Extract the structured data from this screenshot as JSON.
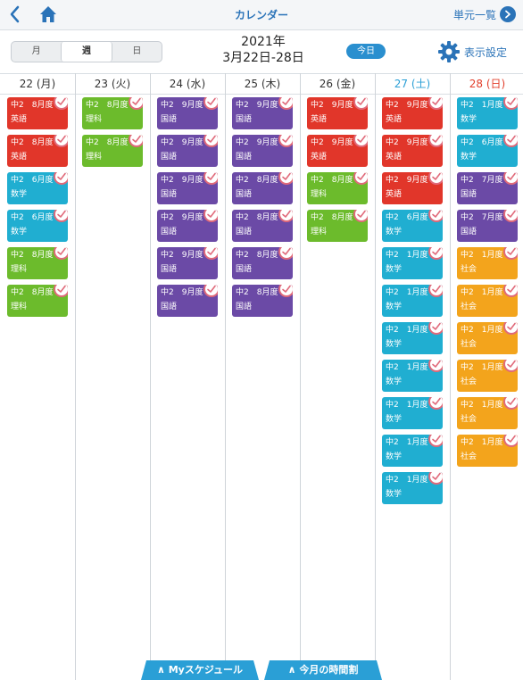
{
  "nav": {
    "title": "カレンダー",
    "unit_list": "単元一覧"
  },
  "view_tabs": [
    "月",
    "週",
    "日"
  ],
  "header": {
    "year": "2021年",
    "range": "3月22日-28日",
    "today": "今日",
    "settings": "表示設定"
  },
  "days": [
    {
      "label": "22 (月)",
      "type": "weekday"
    },
    {
      "label": "23 (火)",
      "type": "weekday"
    },
    {
      "label": "24 (水)",
      "type": "weekday"
    },
    {
      "label": "25 (木)",
      "type": "weekday"
    },
    {
      "label": "26 (金)",
      "type": "weekday"
    },
    {
      "label": "27 (土)",
      "type": "sat"
    },
    {
      "label": "28 (日)",
      "type": "sun"
    }
  ],
  "events": [
    [
      {
        "line1": "中2　8月度",
        "line2": "英語",
        "color": "red"
      },
      {
        "line1": "中2　8月度",
        "line2": "英語",
        "color": "red"
      },
      {
        "line1": "中2　6月度",
        "line2": "数学",
        "color": "cyan"
      },
      {
        "line1": "中2　6月度",
        "line2": "数学",
        "color": "cyan"
      },
      {
        "line1": "中2　8月度",
        "line2": "理科",
        "color": "green"
      },
      {
        "line1": "中2　8月度",
        "line2": "理科",
        "color": "green"
      }
    ],
    [
      {
        "line1": "中2　8月度",
        "line2": "理科",
        "color": "green"
      },
      {
        "line1": "中2　8月度",
        "line2": "理科",
        "color": "green"
      }
    ],
    [
      {
        "line1": "中2　9月度",
        "line2": "国語",
        "color": "purple"
      },
      {
        "line1": "中2　9月度",
        "line2": "国語",
        "color": "purple"
      },
      {
        "line1": "中2　9月度",
        "line2": "国語",
        "color": "purple"
      },
      {
        "line1": "中2　9月度",
        "line2": "国語",
        "color": "purple"
      },
      {
        "line1": "中2　9月度",
        "line2": "国語",
        "color": "purple"
      },
      {
        "line1": "中2　9月度",
        "line2": "国語",
        "color": "purple"
      }
    ],
    [
      {
        "line1": "中2　9月度",
        "line2": "国語",
        "color": "purple"
      },
      {
        "line1": "中2　9月度",
        "line2": "国語",
        "color": "purple"
      },
      {
        "line1": "中2　8月度",
        "line2": "国語",
        "color": "purple"
      },
      {
        "line1": "中2　8月度",
        "line2": "国語",
        "color": "purple"
      },
      {
        "line1": "中2　8月度",
        "line2": "国語",
        "color": "purple"
      },
      {
        "line1": "中2　8月度",
        "line2": "国語",
        "color": "purple"
      }
    ],
    [
      {
        "line1": "中2　9月度",
        "line2": "英語",
        "color": "red"
      },
      {
        "line1": "中2　9月度",
        "line2": "英語",
        "color": "red"
      },
      {
        "line1": "中2　8月度",
        "line2": "理科",
        "color": "green"
      },
      {
        "line1": "中2　8月度",
        "line2": "理科",
        "color": "green"
      }
    ],
    [
      {
        "line1": "中2　9月度",
        "line2": "英語",
        "color": "red"
      },
      {
        "line1": "中2　9月度",
        "line2": "英語",
        "color": "red"
      },
      {
        "line1": "中2　9月度",
        "line2": "英語",
        "color": "red"
      },
      {
        "line1": "中2　6月度",
        "line2": "数学",
        "color": "cyan"
      },
      {
        "line1": "中2　1月度",
        "line2": "数学",
        "color": "cyan"
      },
      {
        "line1": "中2　1月度",
        "line2": "数学",
        "color": "cyan"
      },
      {
        "line1": "中2　1月度",
        "line2": "数学",
        "color": "cyan"
      },
      {
        "line1": "中2　1月度",
        "line2": "数学",
        "color": "cyan"
      },
      {
        "line1": "中2　1月度",
        "line2": "数学",
        "color": "cyan"
      },
      {
        "line1": "中2　1月度",
        "line2": "数学",
        "color": "cyan"
      },
      {
        "line1": "中2　1月度",
        "line2": "数学",
        "color": "cyan"
      }
    ],
    [
      {
        "line1": "中2　1月度",
        "line2": "数学",
        "color": "cyan"
      },
      {
        "line1": "中2　6月度",
        "line2": "数学",
        "color": "cyan"
      },
      {
        "line1": "中2　7月度",
        "line2": "国語",
        "color": "purple"
      },
      {
        "line1": "中2　7月度",
        "line2": "国語",
        "color": "purple"
      },
      {
        "line1": "中2　1月度",
        "line2": "社会",
        "color": "orange"
      },
      {
        "line1": "中2　1月度",
        "line2": "社会",
        "color": "orange"
      },
      {
        "line1": "中2　1月度",
        "line2": "社会",
        "color": "orange"
      },
      {
        "line1": "中2　1月度",
        "line2": "社会",
        "color": "orange"
      },
      {
        "line1": "中2　1月度",
        "line2": "社会",
        "color": "orange"
      },
      {
        "line1": "中2　1月度",
        "line2": "社会",
        "color": "orange"
      }
    ]
  ],
  "bottom_tabs": [
    "∧ Myスケジュール",
    "∧ 今月の時間割"
  ],
  "colors": {
    "accent": "#2a73b8",
    "red": "#e1362a",
    "green": "#6cbb2c",
    "cyan": "#20aed1",
    "purple": "#6b4aa6",
    "orange": "#f3a41c",
    "saturday": "#2a9fd6",
    "sunday": "#e2402d"
  }
}
